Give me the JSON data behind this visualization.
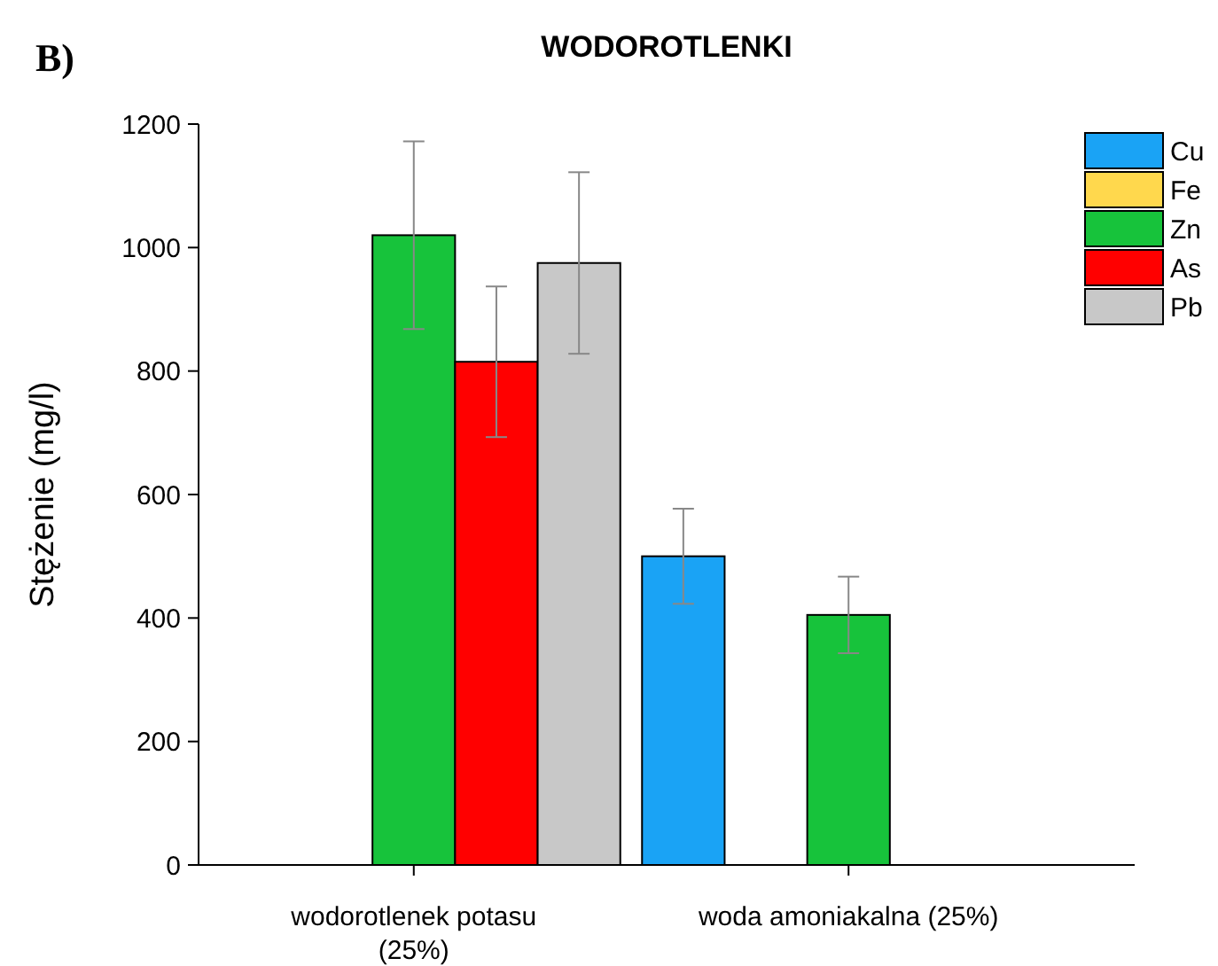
{
  "chart_data": {
    "type": "bar",
    "title": "WODOROTLENKI",
    "ylabel": "Stężenie (mg/l)",
    "annotations": [
      "B)"
    ],
    "categories": [
      "wodorotlenek potasu (25%)",
      "woda amoniakalna (25%)"
    ],
    "series": [
      {
        "name": "Cu",
        "color": "#1aa3f5",
        "values": [
          null,
          500
        ],
        "errors": [
          null,
          77
        ]
      },
      {
        "name": "Fe",
        "color": "#ffd84d",
        "values": [
          null,
          null
        ],
        "errors": [
          null,
          null
        ]
      },
      {
        "name": "Zn",
        "color": "#17c33b",
        "values": [
          1020,
          405
        ],
        "errors": [
          152,
          62
        ]
      },
      {
        "name": "As",
        "color": "#ff0000",
        "values": [
          815,
          null
        ],
        "errors": [
          122,
          null
        ]
      },
      {
        "name": "Pb",
        "color": "#c8c8c8",
        "values": [
          975,
          null
        ],
        "errors": [
          147,
          null
        ]
      }
    ],
    "ylim": [
      0,
      1200
    ],
    "yticks": [
      0,
      200,
      400,
      600,
      800,
      1000,
      1200
    ],
    "grid": false,
    "legend": "top right"
  }
}
